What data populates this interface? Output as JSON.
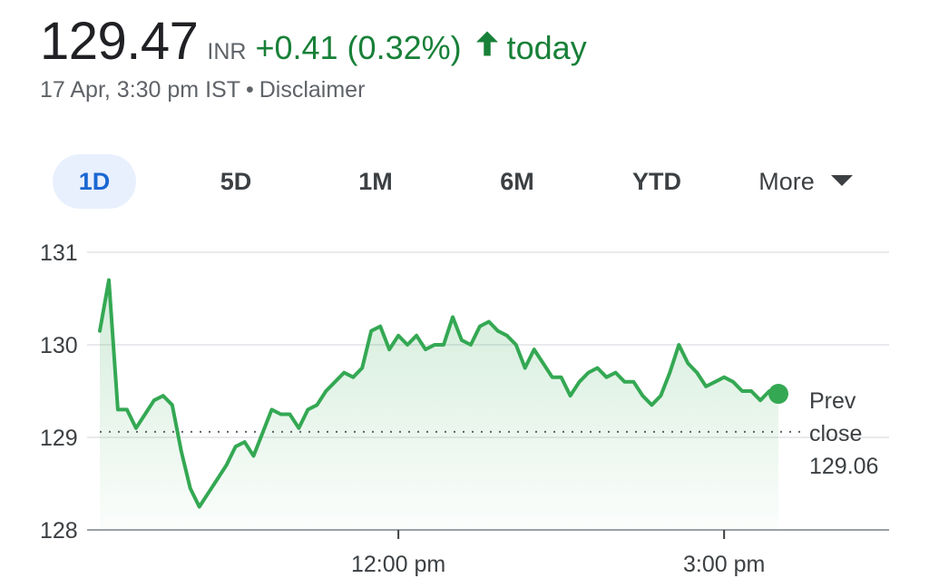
{
  "quote": {
    "price": "129.47",
    "currency": "INR",
    "change": "+0.41 (0.32%)",
    "period_label": "today",
    "timestamp": "17 Apr, 3:30 pm IST",
    "separator": "•",
    "disclaimer": "Disclaimer",
    "accent_color": "#188038",
    "arrow_icon": "arrow-up-icon"
  },
  "tabs": [
    {
      "label": "1D",
      "active": true
    },
    {
      "label": "5D",
      "active": false
    },
    {
      "label": "1M",
      "active": false
    },
    {
      "label": "6M",
      "active": false
    },
    {
      "label": "YTD",
      "active": false
    },
    {
      "label": "More",
      "active": false
    }
  ],
  "chart_data": {
    "type": "line",
    "ylim": [
      128,
      131
    ],
    "yticks": [
      "131",
      "130",
      "129",
      "128"
    ],
    "xticks": [
      {
        "label": "12:00 pm",
        "time": "12:00"
      },
      {
        "label": "3:00 pm",
        "time": "15:00"
      }
    ],
    "x_range": [
      "09:15",
      "15:30"
    ],
    "grid": true,
    "line_color": "#34a853",
    "prev_close": {
      "line1": "Prev",
      "line2": "close",
      "value": "129.06",
      "y": 129.06
    },
    "series": [
      {
        "x": [
          "09:15",
          "09:20",
          "09:25",
          "09:30",
          "09:35",
          "09:40",
          "09:45",
          "09:50",
          "09:55",
          "10:00",
          "10:05",
          "10:10",
          "10:15",
          "10:20",
          "10:25",
          "10:30",
          "10:35",
          "10:40",
          "10:45",
          "10:50",
          "10:55",
          "11:00",
          "11:05",
          "11:10",
          "11:15",
          "11:20",
          "11:25",
          "11:30",
          "11:35",
          "11:40",
          "11:45",
          "11:50",
          "11:55",
          "12:00",
          "12:05",
          "12:10",
          "12:15",
          "12:20",
          "12:25",
          "12:30",
          "12:35",
          "12:40",
          "12:45",
          "12:50",
          "12:55",
          "13:00",
          "13:05",
          "13:10",
          "13:15",
          "13:20",
          "13:25",
          "13:30",
          "13:35",
          "13:40",
          "13:45",
          "13:50",
          "13:55",
          "14:00",
          "14:05",
          "14:10",
          "14:15",
          "14:20",
          "14:25",
          "14:30",
          "14:35",
          "14:40",
          "14:45",
          "14:50",
          "14:55",
          "15:00",
          "15:05",
          "15:10",
          "15:15",
          "15:20",
          "15:25",
          "15:30"
        ],
        "values": [
          130.15,
          130.7,
          129.3,
          129.3,
          129.1,
          129.25,
          129.4,
          129.45,
          129.35,
          128.85,
          128.45,
          128.25,
          128.4,
          128.55,
          128.7,
          128.9,
          128.95,
          128.8,
          129.05,
          129.3,
          129.25,
          129.25,
          129.1,
          129.3,
          129.35,
          129.5,
          129.6,
          129.7,
          129.65,
          129.75,
          130.15,
          130.2,
          129.95,
          130.1,
          130.0,
          130.1,
          129.95,
          130.0,
          130.0,
          130.3,
          130.05,
          130.0,
          130.2,
          130.25,
          130.15,
          130.1,
          130.0,
          129.75,
          129.95,
          129.8,
          129.65,
          129.65,
          129.45,
          129.6,
          129.7,
          129.75,
          129.65,
          129.7,
          129.6,
          129.6,
          129.45,
          129.35,
          129.45,
          129.7,
          130.0,
          129.8,
          129.7,
          129.55,
          129.6,
          129.65,
          129.6,
          129.5,
          129.5,
          129.4,
          129.5,
          129.47
        ]
      }
    ]
  }
}
